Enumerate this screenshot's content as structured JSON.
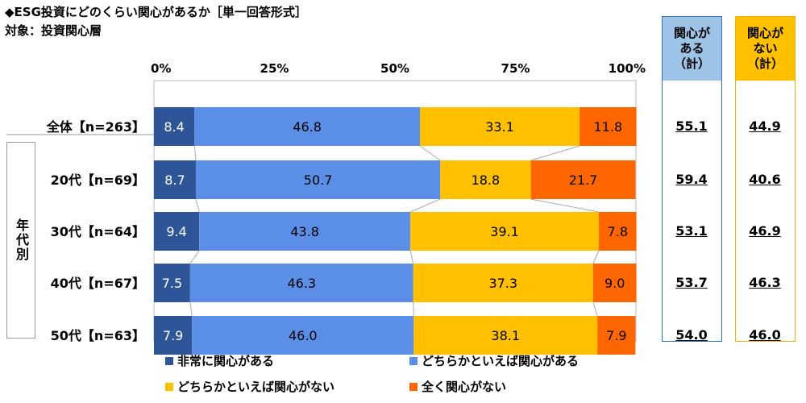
{
  "title": "◆ESG投資にどのくらい関心があるか［単一回答形式］",
  "subtitle": "対象：投資関心層",
  "group_label": "年代別",
  "colors": {
    "very_interested": "#2e5597",
    "somewhat_interested": "#5b8ee6",
    "somewhat_not": "#ffc000",
    "not_at_all": "#ff6600",
    "sum_interest_head": "#9dc3e6",
    "sum_interest_border": "#2e75b6",
    "sum_no_interest_head": "#ffc000",
    "sum_no_interest_border": "#f4b000"
  },
  "summary_headers": {
    "interest": [
      "関心が",
      "ある",
      "（計）"
    ],
    "no_interest": [
      "関心が",
      "ない",
      "（計）"
    ]
  },
  "chart_data": {
    "type": "bar",
    "orientation": "horizontal-stacked-100",
    "x_ticks": [
      "0%",
      "25%",
      "50%",
      "75%",
      "100%"
    ],
    "xlim": [
      0,
      100
    ],
    "categories": [
      "全体【n=263】",
      "20代【n=69】",
      "30代【n=64】",
      "40代【n=67】",
      "50代【n=63】"
    ],
    "series": [
      {
        "name": "非常に関心がある",
        "values": [
          8.4,
          8.7,
          9.4,
          7.5,
          7.9
        ]
      },
      {
        "name": "どちらかといえば関心がある",
        "values": [
          46.8,
          50.7,
          43.8,
          46.3,
          46.0
        ]
      },
      {
        "name": "どちらかといえば関心がない",
        "values": [
          33.1,
          18.8,
          39.1,
          37.3,
          38.1
        ]
      },
      {
        "name": "全く関心がない",
        "values": [
          11.8,
          21.7,
          7.8,
          9.0,
          7.9
        ]
      }
    ],
    "label_strings": [
      [
        "8.4",
        "8.7",
        "9.4",
        "7.5",
        "7.9"
      ],
      [
        "46.8",
        "50.7",
        "43.8",
        "46.3",
        "46.0"
      ],
      [
        "33.1",
        "18.8",
        "39.1",
        "37.3",
        "38.1"
      ],
      [
        "11.8",
        "21.7",
        "7.8",
        "9.0",
        "7.9"
      ]
    ],
    "sum_interest": [
      "55.1",
      "59.4",
      "53.1",
      "53.7",
      "54.0"
    ],
    "sum_no_interest": [
      "44.9",
      "40.6",
      "46.9",
      "46.3",
      "46.0"
    ],
    "legend": [
      "非常に関心がある",
      "どちらかといえば関心がある",
      "どちらかといえば関心がない",
      "全く関心がない"
    ]
  }
}
